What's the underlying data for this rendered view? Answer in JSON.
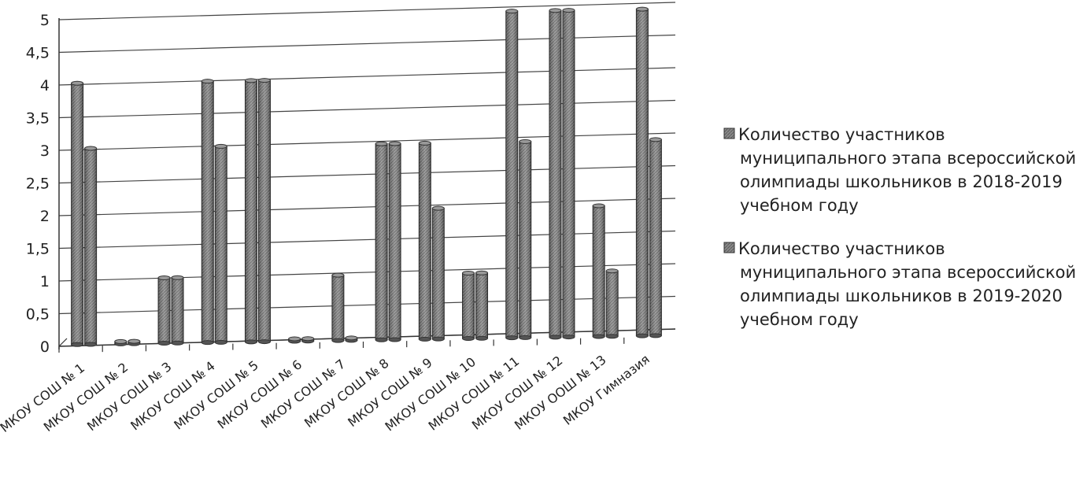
{
  "chart_data": {
    "type": "bar",
    "title": "",
    "xlabel": "",
    "ylabel": "",
    "ylim": [
      0,
      5
    ],
    "yticks": [
      "0",
      "0,5",
      "1",
      "1,5",
      "2",
      "2,5",
      "3",
      "3,5",
      "4",
      "4,5",
      "5"
    ],
    "grid": true,
    "legend_position": "right",
    "categories": [
      "МКОУ СОШ № 1",
      "МКОУ СОШ № 2",
      "МКОУ СОШ № 3",
      "МКОУ СОШ № 4",
      "МКОУ СОШ № 5",
      "МКОУ СОШ № 6",
      "МКОУ СОШ № 7",
      "МКОУ СОШ № 8",
      "МКОУ СОШ № 9",
      "МКОУ СОШ № 10",
      "МКОУ СОШ № 11",
      "МКОУ СОШ № 12",
      "МКОУ ООШ № 13",
      "МКОУ Гимназия"
    ],
    "series": [
      {
        "name": "Количество участников муниципального этапа всероссийской олимпиады школьников в 2018-2019 учебном году",
        "name_lines": [
          "Количество участников",
          "муниципального этапа всероссийской",
          "олимпиады школьников в 2018-2019",
          "учебном году"
        ],
        "color": "#7a7a7a",
        "values": [
          4,
          0,
          1,
          4,
          4,
          0,
          1,
          3,
          3,
          1,
          5,
          5,
          2,
          5
        ]
      },
      {
        "name": "Количество участников муниципального этапа всероссийской олимпиады школьников в 2019-2020 учебном году",
        "name_lines": [
          "Количество участников",
          "муниципального этапа всероссийской",
          "олимпиады школьников в 2019-2020",
          "учебном году"
        ],
        "color": "#6e6e6e",
        "values": [
          3,
          0,
          1,
          3,
          4,
          0,
          0,
          3,
          2,
          1,
          3,
          5,
          1,
          3
        ]
      }
    ]
  }
}
